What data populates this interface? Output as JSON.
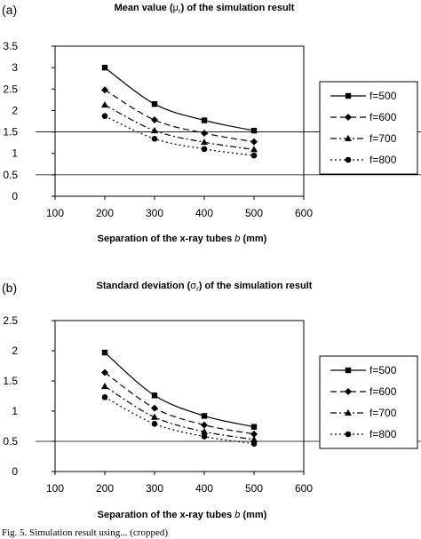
{
  "chart_data": [
    {
      "type": "line",
      "panel_label": "(a)",
      "title_prefix": "Mean value (",
      "title_symbol": "μ",
      "title_sub": "r",
      "title_suffix": ") of the simulation result",
      "xlabel_prefix": "Separation of the x-ray tubes ",
      "xlabel_italic": "b",
      "xlabel_suffix": " (mm)",
      "x": [
        200,
        300,
        400,
        500
      ],
      "xlim": [
        100,
        600
      ],
      "xticks": [
        100,
        200,
        300,
        400,
        500,
        600
      ],
      "ylim": [
        0,
        3.5
      ],
      "yticks": [
        "0",
        "0.5",
        "1",
        "1.5",
        "2",
        "2.5",
        "3",
        "3.5"
      ],
      "reference_lines": [
        0.5,
        1.5
      ],
      "legend_position": "right",
      "series": [
        {
          "name": "f=500",
          "values": [
            3.0,
            2.15,
            1.77,
            1.53
          ],
          "marker": "square",
          "dash": "solid"
        },
        {
          "name": "f=600",
          "values": [
            2.48,
            1.78,
            1.47,
            1.27
          ],
          "marker": "diamond",
          "dash": "dash"
        },
        {
          "name": "f=700",
          "values": [
            2.13,
            1.53,
            1.26,
            1.09
          ],
          "marker": "triangle",
          "dash": "dashdot"
        },
        {
          "name": "f=800",
          "values": [
            1.87,
            1.34,
            1.1,
            0.95
          ],
          "marker": "circle",
          "dash": "dot"
        }
      ]
    },
    {
      "type": "line",
      "panel_label": "(b)",
      "title_prefix": "Standard deviation (",
      "title_symbol": "σ",
      "title_sub": "r",
      "title_suffix": ") of the simulation result",
      "xlabel_prefix": "Separation of the x-ray tubes ",
      "xlabel_italic": "b",
      "xlabel_suffix": " (mm)",
      "x": [
        200,
        300,
        400,
        500
      ],
      "xlim": [
        100,
        600
      ],
      "xticks": [
        100,
        200,
        300,
        400,
        500,
        600
      ],
      "ylim": [
        0,
        2.5
      ],
      "yticks": [
        "0",
        "0.5",
        "1",
        "1.5",
        "2",
        "2.5"
      ],
      "reference_lines": [
        0.5
      ],
      "legend_position": "right",
      "series": [
        {
          "name": "f=500",
          "values": [
            1.97,
            1.26,
            0.92,
            0.74
          ],
          "marker": "square",
          "dash": "solid"
        },
        {
          "name": "f=600",
          "values": [
            1.64,
            1.05,
            0.77,
            0.62
          ],
          "marker": "diamond",
          "dash": "dash"
        },
        {
          "name": "f=700",
          "values": [
            1.41,
            0.9,
            0.66,
            0.53
          ],
          "marker": "triangle",
          "dash": "dashdot"
        },
        {
          "name": "f=800",
          "values": [
            1.23,
            0.79,
            0.58,
            0.46
          ],
          "marker": "circle",
          "dash": "dot"
        }
      ]
    }
  ],
  "caption": "Fig. 5.   Simulation result using... (cropped)"
}
